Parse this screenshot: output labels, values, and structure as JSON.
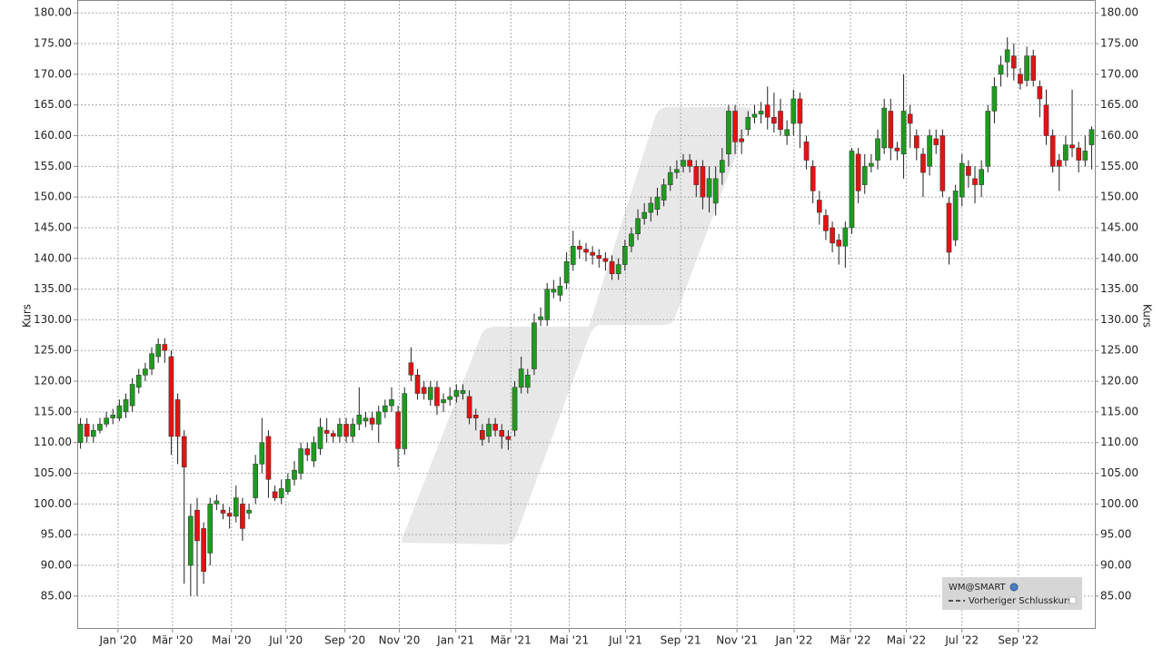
{
  "chart_data": {
    "type": "candlestick",
    "y_axis_label": "Kurs",
    "up_color": "#1f9a1f",
    "down_color": "#e01414",
    "grid": true,
    "ylim": [
      79.8,
      182.1
    ],
    "yticks": [
      {
        "value": 85,
        "label": "85.00"
      },
      {
        "value": 90,
        "label": "90.00"
      },
      {
        "value": 95,
        "label": "95.00"
      },
      {
        "value": 100,
        "label": "100.00"
      },
      {
        "value": 105,
        "label": "105.00"
      },
      {
        "value": 110,
        "label": "110.00"
      },
      {
        "value": 115,
        "label": "115.00"
      },
      {
        "value": 120,
        "label": "120.00"
      },
      {
        "value": 125,
        "label": "125.00"
      },
      {
        "value": 130,
        "label": "130.00"
      },
      {
        "value": 135,
        "label": "135.00"
      },
      {
        "value": 140,
        "label": "140.00"
      },
      {
        "value": 145,
        "label": "145.00"
      },
      {
        "value": 150,
        "label": "150.00"
      },
      {
        "value": 155,
        "label": "155.00"
      },
      {
        "value": 160,
        "label": "160.00"
      },
      {
        "value": 165,
        "label": "165.00"
      },
      {
        "value": 170,
        "label": "170.00"
      },
      {
        "value": 175,
        "label": "175.00"
      },
      {
        "value": 180,
        "label": "180.00"
      }
    ],
    "xlim": [
      0,
      157
    ],
    "xticks": [
      {
        "value": 6.3,
        "label": "Jan '20"
      },
      {
        "value": 14.7,
        "label": "Mär '20"
      },
      {
        "value": 23.8,
        "label": "Mai '20"
      },
      {
        "value": 32.2,
        "label": "Jul '20"
      },
      {
        "value": 41.3,
        "label": "Sep '20"
      },
      {
        "value": 49.7,
        "label": "Nov '20"
      },
      {
        "value": 58.4,
        "label": "Jan '21"
      },
      {
        "value": 66.9,
        "label": "Mär '21"
      },
      {
        "value": 75.9,
        "label": "Mai '21"
      },
      {
        "value": 84.6,
        "label": "Jul '21"
      },
      {
        "value": 93.1,
        "label": "Sep '21"
      },
      {
        "value": 101.8,
        "label": "Nov '21"
      },
      {
        "value": 110.6,
        "label": "Jan '22"
      },
      {
        "value": 119.3,
        "label": "Mär '22"
      },
      {
        "value": 127.9,
        "label": "Mai '22"
      },
      {
        "value": 136.5,
        "label": "Jul '22"
      },
      {
        "value": 145.2,
        "label": "Sep '22"
      }
    ],
    "reference_line": {
      "name": "Vorheriger Schlusskurs"
    },
    "series": [
      {
        "name": "WM@SMART",
        "open": [
          110,
          113,
          111,
          112,
          113,
          114,
          114,
          115,
          116,
          119,
          121,
          122,
          124,
          126,
          124,
          117,
          111,
          90,
          99,
          96,
          92,
          100,
          99,
          98.5,
          98,
          100,
          98.5,
          101,
          106.5,
          111,
          102,
          101,
          102,
          104,
          105,
          109,
          107,
          109,
          112,
          111.5,
          111,
          113,
          111,
          113,
          113.5,
          114,
          113,
          115,
          116,
          115,
          109,
          123,
          121,
          119,
          117,
          119,
          116.5,
          117,
          117.5,
          118,
          117.5,
          114.5,
          112,
          111,
          113,
          112,
          111,
          112,
          119,
          119,
          122,
          130,
          130,
          134.5,
          134,
          136,
          139,
          142,
          141.5,
          141,
          140.5,
          140,
          139.5,
          137.5,
          139,
          142,
          144,
          146.5,
          147.5,
          148,
          149.5,
          152,
          154,
          155,
          156,
          155,
          155,
          150,
          149,
          154,
          157,
          164,
          159.5,
          161,
          163,
          163.5,
          165,
          163,
          164,
          160,
          162,
          166,
          159,
          155,
          149.5,
          147,
          145,
          143,
          142,
          145,
          157,
          152,
          155,
          156,
          158,
          164,
          158,
          157,
          163.5,
          160,
          157,
          155,
          159.5,
          160,
          149,
          143,
          150,
          155,
          153,
          152,
          155,
          164,
          170,
          172,
          173,
          170,
          169,
          173,
          168,
          165,
          160,
          156,
          156,
          158.5,
          158,
          156,
          158.5
        ],
        "high": [
          114,
          114,
          113,
          114,
          115,
          115.5,
          117,
          118,
          120.5,
          122,
          123,
          125.5,
          127,
          127,
          125,
          118,
          112,
          100,
          101,
          97,
          101,
          101.5,
          100,
          99.5,
          103,
          101,
          100,
          108,
          114,
          112,
          103,
          104,
          105,
          107,
          110,
          110,
          111,
          114,
          114,
          112,
          114,
          114,
          114,
          119,
          115,
          115,
          116,
          117,
          119,
          116,
          119,
          125.5,
          122,
          120,
          120,
          120,
          118,
          119,
          119.5,
          119.5,
          118.5,
          115.5,
          113,
          114,
          114,
          113,
          112,
          120,
          124,
          122,
          131,
          132,
          136,
          136.5,
          137,
          141,
          144.5,
          143,
          142.5,
          142,
          141.5,
          141,
          140.5,
          140,
          143,
          145,
          148,
          149,
          150,
          151.5,
          153,
          155,
          156,
          157,
          157,
          156,
          156,
          155,
          155,
          158,
          165,
          165,
          161,
          164,
          165,
          165.5,
          168,
          167,
          166,
          162.5,
          167.5,
          167,
          160,
          156,
          151,
          148,
          146,
          144,
          146,
          158,
          158,
          157,
          157,
          161,
          166,
          166,
          159,
          170,
          165,
          161,
          158,
          161,
          161,
          161,
          150,
          152,
          157,
          156,
          155,
          156,
          165,
          169.5,
          173,
          176,
          175,
          171,
          174.5,
          174,
          169,
          167.5,
          161,
          157,
          160,
          167.5,
          159,
          160,
          161.5
        ],
        "low": [
          109,
          110,
          110,
          111.5,
          112.5,
          113,
          113.5,
          114,
          115,
          118,
          120,
          121,
          123,
          123,
          108,
          106.5,
          87,
          85,
          85,
          87,
          90,
          99,
          97.5,
          96,
          97,
          94,
          97.5,
          100,
          105,
          101,
          100.5,
          100,
          101.5,
          103,
          104,
          107,
          106,
          108,
          110,
          110,
          110,
          110,
          110,
          112,
          112.5,
          112,
          110,
          114,
          115,
          106,
          108,
          120,
          117,
          117,
          116,
          114.5,
          115,
          116,
          116.5,
          117,
          113,
          112,
          109.5,
          110,
          111,
          109,
          108.8,
          111,
          118,
          118,
          121,
          129,
          129,
          133.5,
          133,
          135,
          138,
          140,
          139.5,
          139,
          138.5,
          138,
          136.5,
          136.5,
          138,
          141,
          143,
          145.5,
          146,
          147,
          148.5,
          151,
          153,
          154,
          154,
          150,
          148,
          147.5,
          147,
          152,
          155,
          157,
          157,
          160,
          162,
          162,
          161,
          160.5,
          160,
          158.5,
          160,
          158,
          154.5,
          149,
          145.5,
          143,
          141,
          139,
          138.5,
          144,
          149,
          150.5,
          154,
          154.5,
          157,
          156,
          156,
          153,
          158,
          156,
          150,
          153.5,
          157,
          150,
          139,
          142,
          148.5,
          151.5,
          149,
          150,
          154,
          162,
          168,
          169.5,
          169,
          167.5,
          168,
          168,
          163,
          158.5,
          154,
          151,
          155,
          156.5,
          154,
          155,
          154.5
        ],
        "close": [
          113,
          111,
          112,
          113,
          114,
          114.5,
          116,
          117,
          119.5,
          121,
          122,
          124.5,
          126,
          125,
          111,
          111,
          106,
          98,
          94,
          89,
          100,
          100.5,
          98.5,
          98,
          101,
          96,
          99,
          106.5,
          110,
          104,
          101,
          102.5,
          104,
          105.5,
          109,
          108,
          110,
          112.5,
          111.5,
          111,
          113,
          111,
          113,
          114.5,
          114,
          113,
          115,
          116,
          117,
          109,
          118,
          121,
          118,
          118,
          119,
          116,
          117,
          117.5,
          118.5,
          118.5,
          114,
          114,
          110.5,
          113,
          112,
          111,
          110.5,
          119,
          122,
          121,
          129.5,
          130.5,
          135,
          135,
          135.5,
          139.5,
          142,
          141.5,
          141,
          140.5,
          140,
          139.5,
          137.5,
          139,
          142,
          144,
          146.5,
          147.5,
          149,
          150,
          152,
          154,
          154.5,
          156,
          155,
          152,
          150,
          153,
          153,
          156,
          164,
          159,
          159,
          163,
          163.5,
          164,
          163,
          162,
          161,
          161,
          166,
          162,
          156,
          151,
          147.5,
          144.5,
          142.5,
          142,
          145,
          157.5,
          151,
          155,
          155.5,
          159.5,
          164.5,
          158,
          157.5,
          164,
          162,
          158,
          154,
          160,
          158.5,
          151,
          141,
          151,
          155.5,
          153.5,
          152,
          154.5,
          164,
          168,
          171.5,
          174,
          171,
          168.5,
          173,
          169,
          166,
          160,
          155,
          155,
          158.5,
          158,
          156,
          157.5,
          161
        ]
      }
    ]
  }
}
